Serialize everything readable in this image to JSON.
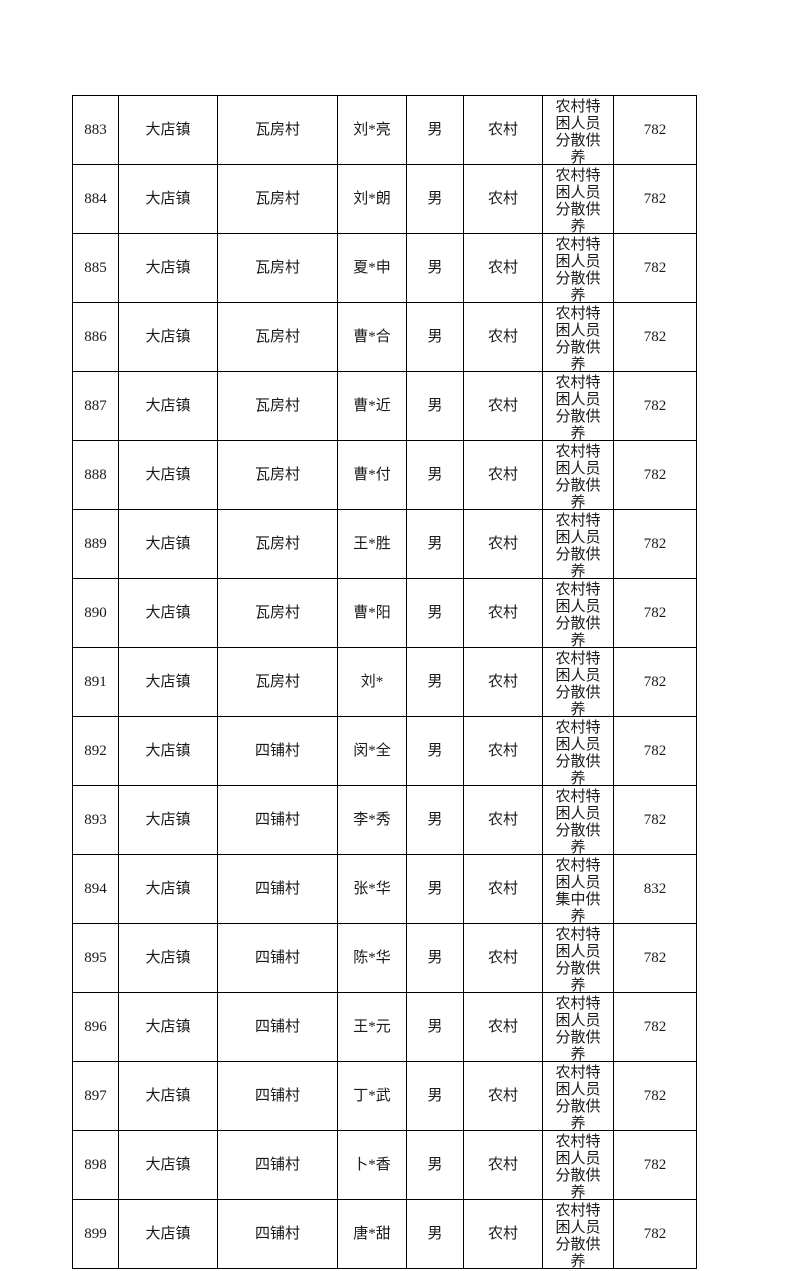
{
  "colors": {
    "background": "#ffffff",
    "border": "#000000",
    "text": "#1a1a1a"
  },
  "table": {
    "column_keys": [
      "seq",
      "town",
      "village",
      "name",
      "gender",
      "area",
      "category",
      "amount"
    ],
    "rows": [
      {
        "seq": "883",
        "town": "大店镇",
        "village": "瓦房村",
        "name": "刘*亮",
        "gender": "男",
        "area": "农村",
        "category": "农村特困人员分散供养",
        "amount": "782"
      },
      {
        "seq": "884",
        "town": "大店镇",
        "village": "瓦房村",
        "name": "刘*朗",
        "gender": "男",
        "area": "农村",
        "category": "农村特困人员分散供养",
        "amount": "782"
      },
      {
        "seq": "885",
        "town": "大店镇",
        "village": "瓦房村",
        "name": "夏*申",
        "gender": "男",
        "area": "农村",
        "category": "农村特困人员分散供养",
        "amount": "782"
      },
      {
        "seq": "886",
        "town": "大店镇",
        "village": "瓦房村",
        "name": "曹*合",
        "gender": "男",
        "area": "农村",
        "category": "农村特困人员分散供养",
        "amount": "782"
      },
      {
        "seq": "887",
        "town": "大店镇",
        "village": "瓦房村",
        "name": "曹*近",
        "gender": "男",
        "area": "农村",
        "category": "农村特困人员分散供养",
        "amount": "782"
      },
      {
        "seq": "888",
        "town": "大店镇",
        "village": "瓦房村",
        "name": "曹*付",
        "gender": "男",
        "area": "农村",
        "category": "农村特困人员分散供养",
        "amount": "782"
      },
      {
        "seq": "889",
        "town": "大店镇",
        "village": "瓦房村",
        "name": "王*胜",
        "gender": "男",
        "area": "农村",
        "category": "农村特困人员分散供养",
        "amount": "782"
      },
      {
        "seq": "890",
        "town": "大店镇",
        "village": "瓦房村",
        "name": "曹*阳",
        "gender": "男",
        "area": "农村",
        "category": "农村特困人员分散供养",
        "amount": "782"
      },
      {
        "seq": "891",
        "town": "大店镇",
        "village": "瓦房村",
        "name": "刘*",
        "gender": "男",
        "area": "农村",
        "category": "农村特困人员分散供养",
        "amount": "782"
      },
      {
        "seq": "892",
        "town": "大店镇",
        "village": "四铺村",
        "name": "闵*全",
        "gender": "男",
        "area": "农村",
        "category": "农村特困人员分散供养",
        "amount": "782"
      },
      {
        "seq": "893",
        "town": "大店镇",
        "village": "四铺村",
        "name": "李*秀",
        "gender": "男",
        "area": "农村",
        "category": "农村特困人员分散供养",
        "amount": "782"
      },
      {
        "seq": "894",
        "town": "大店镇",
        "village": "四铺村",
        "name": "张*华",
        "gender": "男",
        "area": "农村",
        "category": "农村特困人员集中供养",
        "amount": "832"
      },
      {
        "seq": "895",
        "town": "大店镇",
        "village": "四铺村",
        "name": "陈*华",
        "gender": "男",
        "area": "农村",
        "category": "农村特困人员分散供养",
        "amount": "782"
      },
      {
        "seq": "896",
        "town": "大店镇",
        "village": "四铺村",
        "name": "王*元",
        "gender": "男",
        "area": "农村",
        "category": "农村特困人员分散供养",
        "amount": "782"
      },
      {
        "seq": "897",
        "town": "大店镇",
        "village": "四铺村",
        "name": "丁*武",
        "gender": "男",
        "area": "农村",
        "category": "农村特困人员分散供养",
        "amount": "782"
      },
      {
        "seq": "898",
        "town": "大店镇",
        "village": "四铺村",
        "name": "卜*香",
        "gender": "男",
        "area": "农村",
        "category": "农村特困人员分散供养",
        "amount": "782"
      },
      {
        "seq": "899",
        "town": "大店镇",
        "village": "四铺村",
        "name": "唐*甜",
        "gender": "男",
        "area": "农村",
        "category": "农村特困人员分散供养",
        "amount": "782"
      }
    ]
  }
}
